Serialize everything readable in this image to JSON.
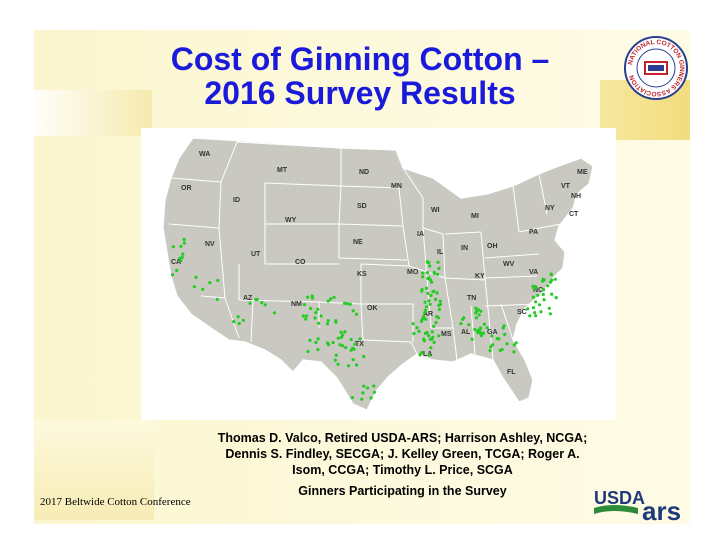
{
  "slide": {
    "title_line1": "Cost of Ginning Cotton –",
    "title_line2": "2016 Survey Results",
    "authors_line1": "Thomas D. Valco, Retired USDA-ARS; Harrison Ashley, NCGA;",
    "authors_line2": "Dennis S. Findley, SECGA; J. Kelley Green, TCGA; Roger A.",
    "authors_line3": "Isom, CCGA; Timothy L. Price, SCGA",
    "map_caption": "Ginners Participating in the Survey",
    "conference": "2017 Beltwide Cotton Conference"
  },
  "logos": {
    "ncga_ring_text": "NATIONAL COTTON GINNERS ASSOCIATION",
    "usda_text": "USDA",
    "ars_text": "ars"
  },
  "map": {
    "state_labels": [
      "WA",
      "MT",
      "ND",
      "MN",
      "ME",
      "VT",
      "NH",
      "OR",
      "ID",
      "SD",
      "WI",
      "MI",
      "NY",
      "CT",
      "WY",
      "IA",
      "PA",
      "NV",
      "NE",
      "IN",
      "OH",
      "UT",
      "CO",
      "IL",
      "WV",
      "CA",
      "KS",
      "MO",
      "KY",
      "VA",
      "AZ",
      "TN",
      "NC",
      "NM",
      "OK",
      "AR",
      "SC",
      "MS",
      "AL",
      "GA",
      "TX",
      "LA",
      "FL"
    ]
  },
  "colors": {
    "title": "#1a1adb",
    "map_land": "#c9c9c1",
    "map_border": "#ffffff",
    "gin_dots": "#22cc22"
  }
}
